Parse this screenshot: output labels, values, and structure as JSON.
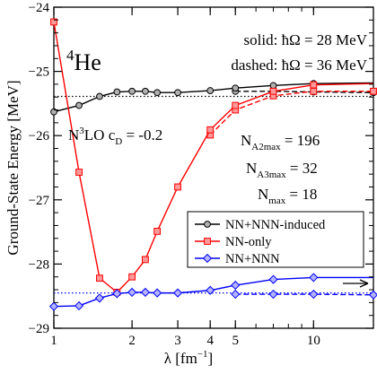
{
  "chart_data": {
    "type": "line",
    "x_scale": "log",
    "xlim": [
      1,
      17
    ],
    "ylim": [
      -29,
      -24
    ],
    "xlabel": "λ [fm",
    "xlabel_sup": "−1",
    "xlabel_end": "]",
    "ylabel": "Ground-State Energy [MeV]",
    "x_ticks": [
      {
        "value": 1,
        "label": "1"
      },
      {
        "value": 2,
        "label": "2"
      },
      {
        "value": 3,
        "label": "3"
      },
      {
        "value": 4,
        "label": "4"
      },
      {
        "value": 5,
        "label": "5"
      },
      {
        "value": 10,
        "label": "10"
      }
    ],
    "y_ticks": [
      {
        "value": -24,
        "label": "−24"
      },
      {
        "value": -25,
        "label": "−25"
      },
      {
        "value": -26,
        "label": "−26"
      },
      {
        "value": -27,
        "label": "−27"
      },
      {
        "value": -28,
        "label": "−28"
      },
      {
        "value": -29,
        "label": "−29"
      }
    ],
    "annotations": {
      "nucleus_sup": "4",
      "nucleus": "He",
      "solid_label": "solid: ħΩ = 28 MeV",
      "dashed_label": "dashed: ħΩ = 36 MeV",
      "interaction_n": "N",
      "interaction_sup": "3",
      "interaction_rest": "LO c",
      "interaction_sub": "D",
      "interaction_val": " = -0.2",
      "na2_n": "N",
      "na2_sub": "A2max",
      "na2_val": " = 196",
      "na3_n": "N",
      "na3_sub": "A3max",
      "na3_val": " = 32",
      "nmax_n": "N",
      "nmax_sub": "max",
      "nmax_val": " = 18"
    },
    "reference_lines": [
      {
        "y": -25.39,
        "style": "dotted",
        "color": "#000000"
      },
      {
        "y": -28.45,
        "style": "dotted",
        "color": "#0000ff"
      }
    ],
    "series": [
      {
        "name": "NN+NNN-induced",
        "color": "#000000",
        "fill": "#b0b0b0",
        "marker": "circle",
        "solid": {
          "x": [
            1.0,
            1.25,
            1.5,
            1.75,
            2.0,
            2.25,
            2.5,
            3.0,
            4.0,
            5.0,
            7.0,
            10.0,
            17.0
          ],
          "y": [
            -25.63,
            -25.53,
            -25.39,
            -25.32,
            -25.31,
            -25.31,
            -25.33,
            -25.33,
            -25.3,
            -25.26,
            -25.22,
            -25.19,
            -25.18
          ]
        },
        "dashed": {
          "x": [
            5.0,
            7.0,
            10.0,
            17.0
          ],
          "y": [
            -25.31,
            -25.31,
            -25.32,
            -25.33
          ]
        }
      },
      {
        "name": "NN-only",
        "color": "#ff0000",
        "fill": "#ff9999",
        "marker": "square",
        "solid": {
          "x": [
            1.0,
            1.25,
            1.5,
            1.75,
            2.0,
            2.25,
            2.5,
            3.0,
            4.0,
            5.0,
            7.0,
            10.0,
            17.0
          ],
          "y": [
            -24.23,
            -26.57,
            -28.22,
            -28.44,
            -28.2,
            -27.93,
            -27.49,
            -26.8,
            -25.91,
            -25.53,
            -25.31,
            -25.21,
            -25.19
          ]
        },
        "dashed": {
          "x": [
            4.0,
            5.0,
            7.0,
            10.0,
            17.0
          ],
          "y": [
            -25.99,
            -25.6,
            -25.38,
            -25.31,
            -25.31
          ]
        }
      },
      {
        "name": "NN+NNN",
        "color": "#0000ff",
        "fill": "#b3b3ff",
        "marker": "diamond",
        "solid": {
          "x": [
            1.0,
            1.25,
            1.5,
            1.75,
            2.0,
            2.25,
            2.5,
            3.0,
            4.0,
            5.0,
            7.0,
            10.0,
            17.0
          ],
          "y": [
            -28.66,
            -28.65,
            -28.53,
            -28.46,
            -28.44,
            -28.44,
            -28.45,
            -28.45,
            -28.41,
            -28.33,
            -28.24,
            -28.21,
            -28.21
          ]
        },
        "dashed": {
          "x": [
            5.0,
            7.0,
            10.0,
            17.0
          ],
          "y": [
            -28.47,
            -28.47,
            -28.47,
            -28.48
          ]
        }
      }
    ],
    "legend_placement": "bottom-right"
  }
}
